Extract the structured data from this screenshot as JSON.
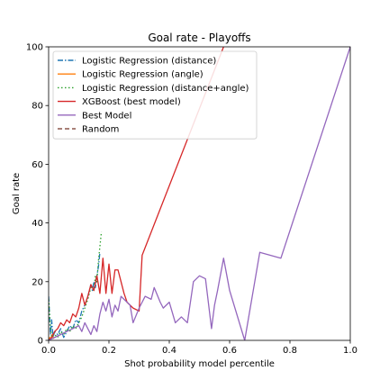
{
  "chart_data": {
    "type": "line",
    "title": "Goal rate - Playoffs",
    "xlabel": "Shot probability model percentile",
    "ylabel": "Goal rate",
    "xlim": [
      0,
      1
    ],
    "ylim": [
      0,
      100
    ],
    "grid": false,
    "legend_position": "top-left",
    "xticks": [
      0.0,
      0.2,
      0.4,
      0.6,
      0.8,
      1.0
    ],
    "xtick_labels": [
      "0.0",
      "0.2",
      "0.4",
      "0.6",
      "0.8",
      "1.0"
    ],
    "yticks": [
      0,
      20,
      40,
      60,
      80,
      100
    ],
    "ytick_labels": [
      "0",
      "20",
      "40",
      "60",
      "80",
      "100"
    ],
    "series": [
      {
        "name": "Logistic Regression (distance)",
        "color": "#1f77b4",
        "dash": "dashdot",
        "x": [
          0.0,
          0.003,
          0.006,
          0.01,
          0.015,
          0.02,
          0.03,
          0.04,
          0.05,
          0.06,
          0.07,
          0.08,
          0.09,
          0.1,
          0.11,
          0.12,
          0.13,
          0.14,
          0.145,
          0.15,
          0.155,
          0.16,
          0.165,
          0.17
        ],
        "values": [
          15,
          9,
          2,
          7,
          1,
          3,
          2,
          4,
          1,
          3,
          5,
          4,
          7,
          6,
          10,
          12,
          15,
          19,
          17,
          20,
          18,
          22,
          25,
          30
        ]
      },
      {
        "name": "Logistic Regression (angle)",
        "color": "#ff7f0e",
        "dash": "solid",
        "x": [
          0.0,
          0.004,
          0.008,
          0.012,
          0.016
        ],
        "values": [
          0,
          1,
          0.5,
          2,
          0.5
        ]
      },
      {
        "name": "Logistic Regression (distance+angle)",
        "color": "#2ca02c",
        "dash": "dotted",
        "x": [
          0.0,
          0.005,
          0.01,
          0.02,
          0.03,
          0.04,
          0.05,
          0.06,
          0.07,
          0.08,
          0.09,
          0.1,
          0.11,
          0.12,
          0.13,
          0.14,
          0.15,
          0.155,
          0.16,
          0.165,
          0.17,
          0.175
        ],
        "values": [
          14,
          6,
          1,
          2,
          1,
          3,
          2,
          4,
          3,
          5,
          4,
          6,
          8,
          11,
          14,
          18,
          17,
          22,
          20,
          27,
          32,
          37
        ]
      },
      {
        "name": "XGBoost (best model)",
        "color": "#d62728",
        "dash": "solid",
        "x": [
          0.0,
          0.01,
          0.02,
          0.03,
          0.04,
          0.05,
          0.06,
          0.07,
          0.08,
          0.09,
          0.1,
          0.11,
          0.12,
          0.13,
          0.14,
          0.15,
          0.16,
          0.17,
          0.18,
          0.19,
          0.2,
          0.21,
          0.22,
          0.23,
          0.24,
          0.25,
          0.26,
          0.28,
          0.3,
          0.31,
          0.58
        ],
        "values": [
          0,
          1,
          3,
          4,
          6,
          5,
          7,
          6,
          9,
          8,
          11,
          16,
          12,
          15,
          19,
          17,
          22,
          16,
          28,
          16,
          26,
          16,
          24,
          24,
          20,
          16,
          13,
          11,
          10,
          29,
          100
        ]
      },
      {
        "name": "Best Model",
        "color": "#9467bd",
        "dash": "solid",
        "x": [
          0.0,
          0.02,
          0.04,
          0.06,
          0.08,
          0.1,
          0.11,
          0.12,
          0.13,
          0.14,
          0.15,
          0.16,
          0.17,
          0.18,
          0.19,
          0.2,
          0.21,
          0.22,
          0.23,
          0.24,
          0.25,
          0.26,
          0.27,
          0.28,
          0.3,
          0.32,
          0.34,
          0.35,
          0.37,
          0.38,
          0.4,
          0.42,
          0.44,
          0.46,
          0.48,
          0.5,
          0.52,
          0.54,
          0.55,
          0.56,
          0.58,
          0.6,
          0.65,
          0.7,
          0.77,
          1.0
        ],
        "values": [
          0,
          1,
          2,
          3,
          4,
          5,
          3,
          6,
          4,
          2,
          5,
          3,
          9,
          13,
          10,
          14,
          8,
          12,
          10,
          15,
          14,
          13,
          12,
          6,
          11,
          15,
          14,
          18,
          13,
          11,
          13,
          6,
          8,
          6,
          20,
          22,
          21,
          4,
          12,
          17,
          28,
          17,
          0,
          30,
          28,
          100
        ]
      },
      {
        "name": "Random",
        "color": "#8c564b",
        "dash": "dashed",
        "x": [],
        "values": []
      }
    ]
  }
}
